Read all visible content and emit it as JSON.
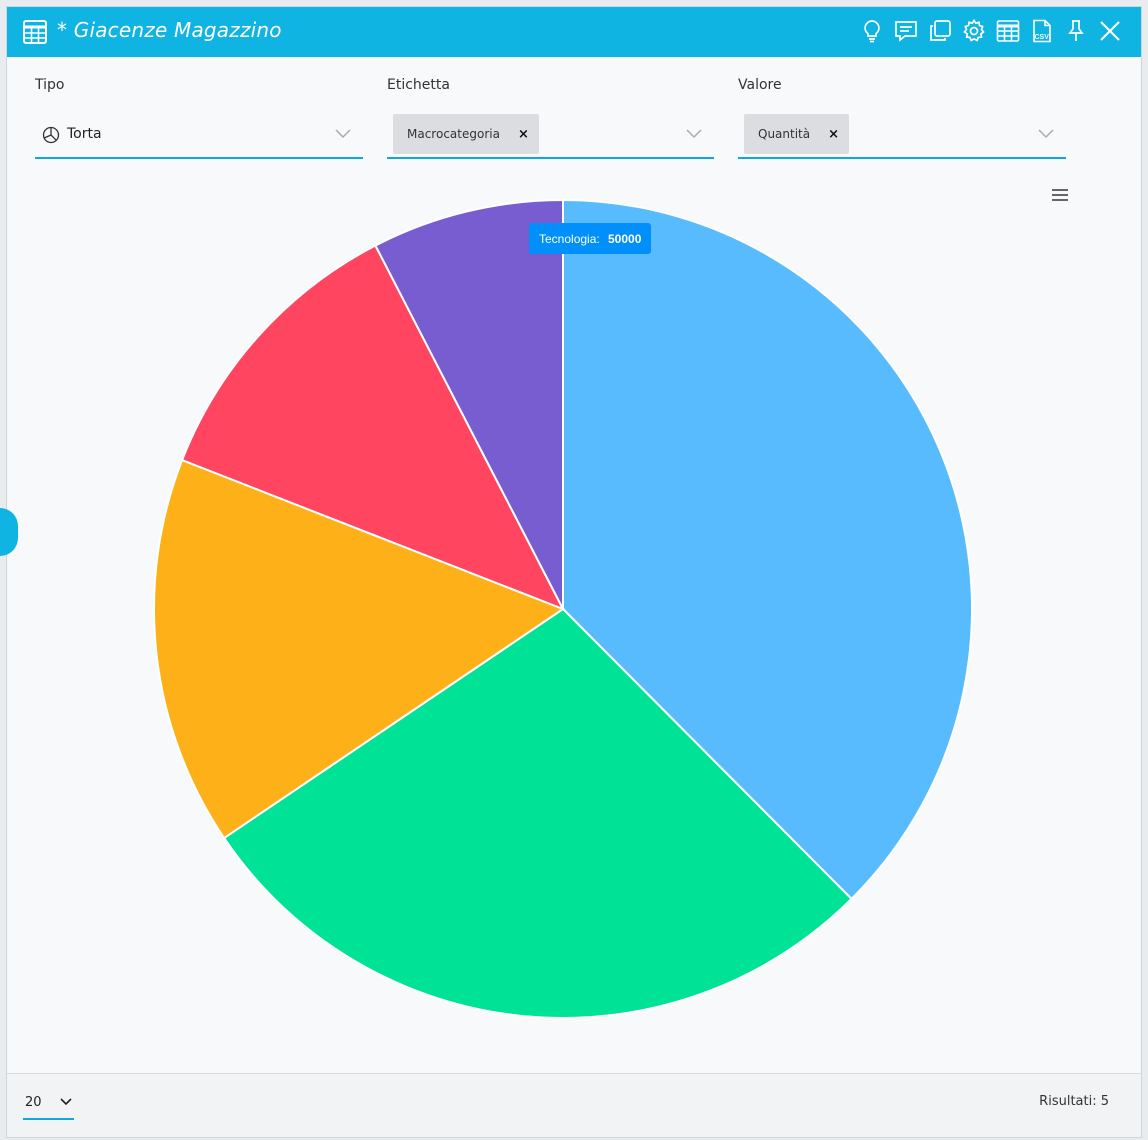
{
  "window": {
    "title": "* Giacenze Magazzino",
    "title_icon": "table-icon",
    "toolbar_icons": [
      "lightbulb-icon",
      "comment-icon",
      "duplicate-icon",
      "gear-icon",
      "table-icon",
      "csv-icon",
      "pin-icon",
      "close-icon"
    ],
    "accent_color": "#0fb4e3"
  },
  "filters": {
    "tipo": {
      "label": "Tipo",
      "value": "Torta",
      "icon": "pie-chart-icon"
    },
    "etichetta": {
      "label": "Etichetta",
      "chip": "Macrocategoria",
      "chip_remove": "×"
    },
    "valore": {
      "label": "Valore",
      "chip": "Quantità",
      "chip_remove": "×"
    }
  },
  "chart_data": {
    "type": "pie",
    "categories": [
      "Tecnologia",
      "",
      "",
      "",
      ""
    ],
    "values": [
      50000,
      37300,
      20500,
      15300,
      10100
    ],
    "colors": [
      "#57bbfd",
      "#00e396",
      "#feb019",
      "#ff4560",
      "#775dd0"
    ],
    "tooltip": {
      "label": "Tecnologia:",
      "value": "50000"
    }
  },
  "footer": {
    "page_size": "20",
    "results": "Risultati: 5"
  }
}
